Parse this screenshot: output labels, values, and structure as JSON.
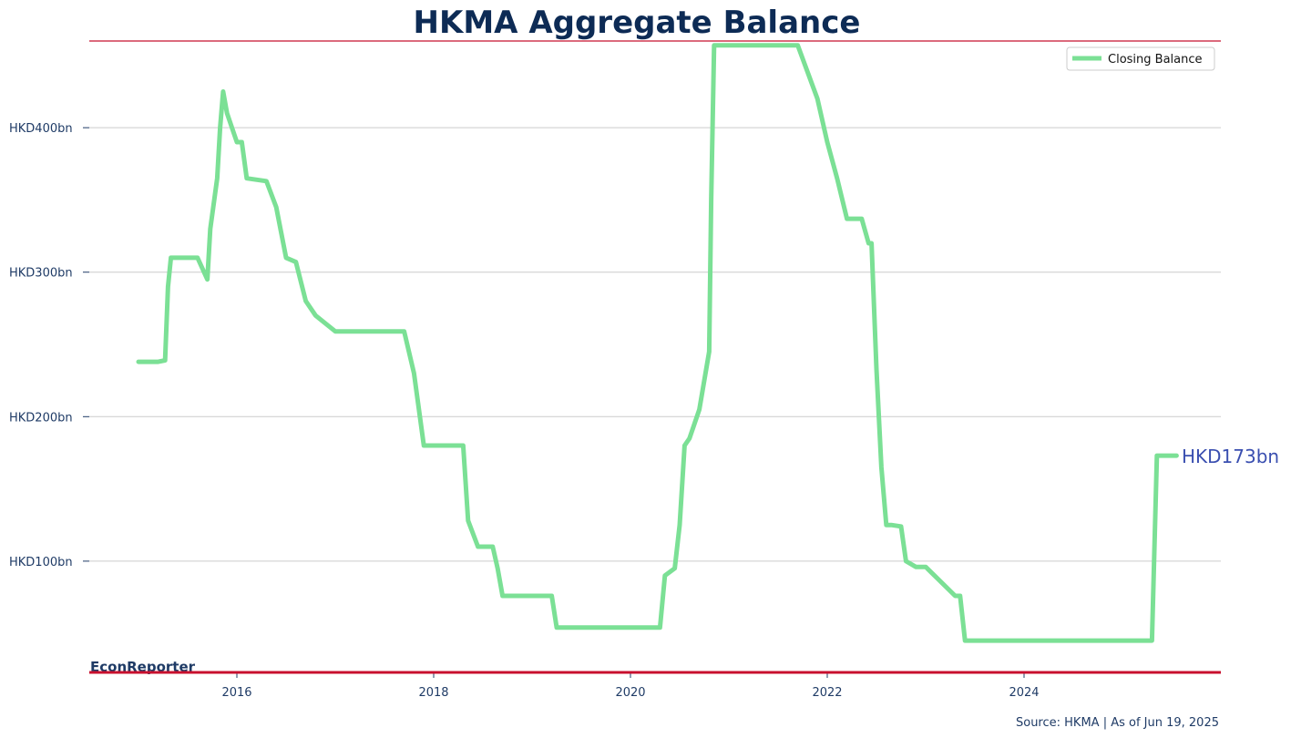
{
  "colors": {
    "title": "#0d2b55",
    "text": "#1f3b66",
    "accent_red": "#c8102e",
    "series": "#7be095",
    "grid": "#cccccc",
    "end_label": "#3a4fb0"
  },
  "chart_data": {
    "type": "line",
    "title": "HKMA Aggregate Balance",
    "xlabel": "",
    "ylabel": "",
    "xlim": [
      2014.5,
      2026.0
    ],
    "ylim": [
      23,
      460
    ],
    "y_ticks": [
      {
        "value": 100,
        "label": "HKD100bn"
      },
      {
        "value": 200,
        "label": "HKD200bn"
      },
      {
        "value": 300,
        "label": "HKD300bn"
      },
      {
        "value": 400,
        "label": "HKD400bn"
      }
    ],
    "x_ticks": [
      {
        "value": 2016,
        "label": "2016"
      },
      {
        "value": 2018,
        "label": "2018"
      },
      {
        "value": 2020,
        "label": "2020"
      },
      {
        "value": 2022,
        "label": "2022"
      },
      {
        "value": 2024,
        "label": "2024"
      }
    ],
    "grid": "horizontal",
    "legend_position": "top-right",
    "series": [
      {
        "name": "Closing Balance",
        "x": [
          2015.0,
          2015.2,
          2015.27,
          2015.3,
          2015.33,
          2015.6,
          2015.7,
          2015.73,
          2015.8,
          2015.83,
          2015.86,
          2015.9,
          2016.0,
          2016.05,
          2016.1,
          2016.3,
          2016.4,
          2016.5,
          2016.6,
          2016.7,
          2016.8,
          2017.0,
          2017.7,
          2017.8,
          2017.9,
          2018.0,
          2018.3,
          2018.35,
          2018.45,
          2018.6,
          2018.65,
          2018.7,
          2019.0,
          2019.1,
          2019.2,
          2019.25,
          2019.5,
          2019.8,
          2019.95,
          2020.0,
          2020.3,
          2020.35,
          2020.45,
          2020.5,
          2020.55,
          2020.6,
          2020.7,
          2020.8,
          2020.82,
          2020.85,
          2020.9,
          2021.7,
          2021.9,
          2022.0,
          2022.1,
          2022.2,
          2022.3,
          2022.35,
          2022.42,
          2022.45,
          2022.5,
          2022.55,
          2022.6,
          2022.65,
          2022.75,
          2022.8,
          2022.9,
          2022.95,
          2023.0,
          2023.3,
          2023.35,
          2023.4,
          2023.7,
          2024.0,
          2024.5,
          2024.9,
          2025.0,
          2025.3,
          2025.35,
          2025.5,
          2025.55
        ],
        "values": [
          238,
          238,
          239,
          290,
          310,
          310,
          295,
          330,
          365,
          400,
          425,
          410,
          390,
          390,
          365,
          363,
          345,
          310,
          307,
          280,
          270,
          259,
          259,
          230,
          180,
          180,
          180,
          128,
          110,
          110,
          95,
          76,
          76,
          76,
          76,
          54,
          54,
          54,
          54,
          54,
          54,
          90,
          95,
          125,
          180,
          185,
          205,
          245,
          350,
          457,
          457,
          457,
          420,
          390,
          365,
          337,
          337,
          337,
          320,
          320,
          233,
          165,
          125,
          125,
          124,
          100,
          96,
          96,
          96,
          76,
          76,
          45,
          45,
          45,
          45,
          45,
          45,
          45,
          173,
          173,
          173
        ]
      }
    ],
    "annotations": {
      "end_value": "HKD173bn"
    }
  },
  "footer": {
    "brand": "EconReporter",
    "source": "Source: HKMA | As of Jun 19, 2025"
  }
}
